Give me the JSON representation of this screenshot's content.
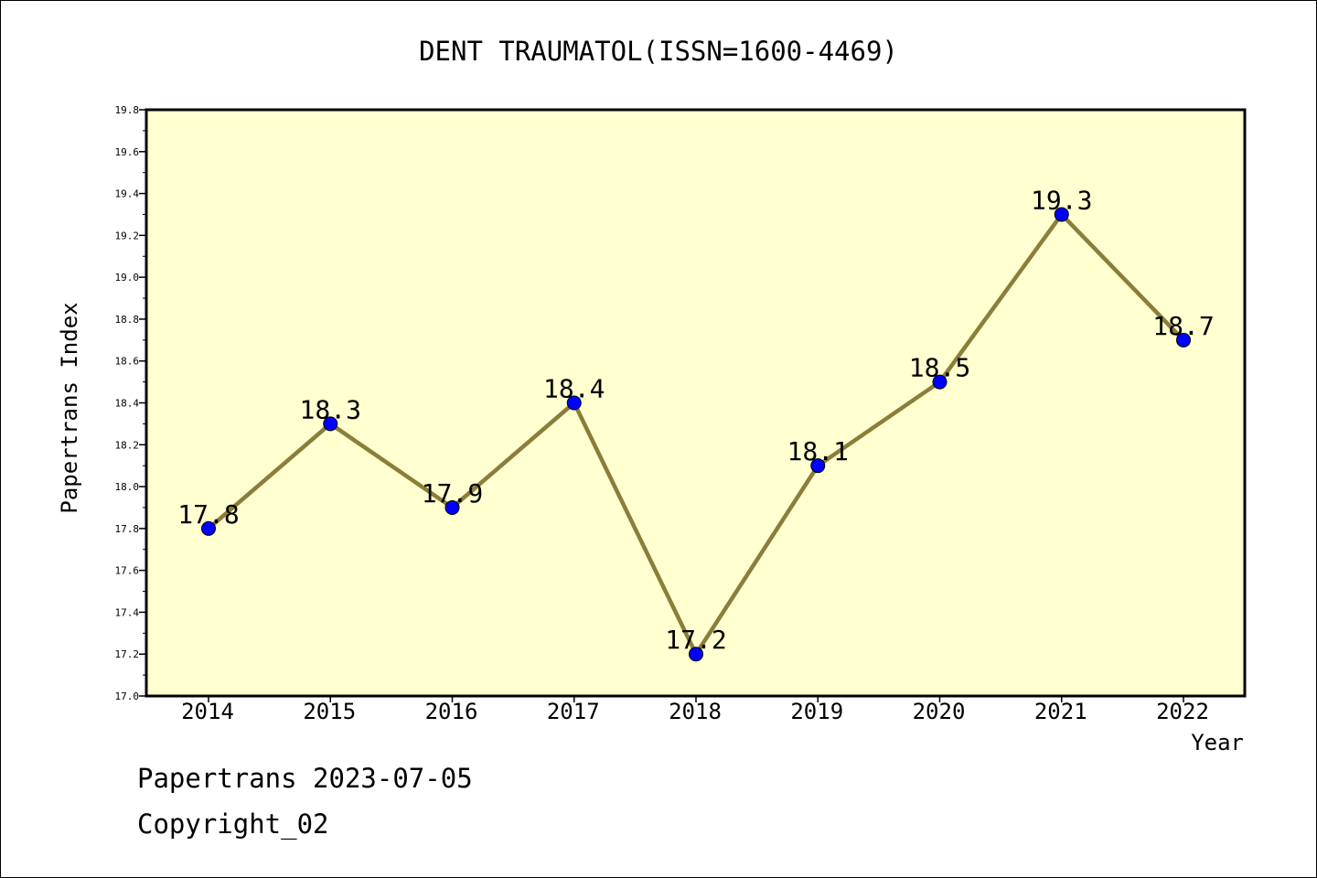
{
  "chart_data": {
    "type": "line",
    "title": "DENT TRAUMATOL(ISSN=1600-4469)",
    "xlabel": "Year",
    "ylabel": "Papertrans Index",
    "categories": [
      "2014",
      "2015",
      "2016",
      "2017",
      "2018",
      "2019",
      "2020",
      "2021",
      "2022"
    ],
    "values": [
      17.8,
      18.3,
      17.9,
      18.4,
      17.2,
      18.1,
      18.5,
      19.3,
      18.7
    ],
    "data_labels": [
      "17.8",
      "18.3",
      "17.9",
      "18.4",
      "17.2",
      "18.1",
      "18.5",
      "19.3",
      "18.7"
    ],
    "ylim": [
      17.0,
      19.8
    ],
    "yticks": [
      "17.0",
      "17.2",
      "17.4",
      "17.6",
      "17.8",
      "18.0",
      "18.2",
      "18.4",
      "18.6",
      "18.8",
      "19.0",
      "19.2",
      "19.4",
      "19.6",
      "19.8"
    ],
    "grid": false,
    "legend": "none",
    "colors": {
      "plot_background": "#ffffd0",
      "line": "#8b7d3a",
      "marker": "#0000ff"
    }
  },
  "footer": {
    "line1": "Papertrans 2023-07-05",
    "line2": "Copyright_02"
  }
}
